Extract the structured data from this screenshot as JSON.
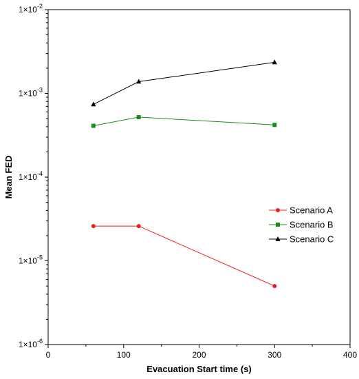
{
  "chart_data": {
    "type": "line",
    "xlabel": "Evacuation Start time (s)",
    "ylabel": "Mean FED",
    "xlim": [
      0,
      400
    ],
    "ylim": [
      1e-06,
      0.01
    ],
    "yscale": "log",
    "x_ticks": [
      0,
      100,
      200,
      300,
      400
    ],
    "x_tick_labels": [
      "0",
      "100",
      "200",
      "300",
      "400"
    ],
    "y_ticks": [
      0.01,
      0.001,
      0.0001,
      1e-05,
      1e-06
    ],
    "y_tick_labels": [
      {
        "base": "1×10",
        "exp": "-2"
      },
      {
        "base": "1×10",
        "exp": "-3"
      },
      {
        "base": "1×10",
        "exp": "-4"
      },
      {
        "base": "1×10",
        "exp": "-5"
      },
      {
        "base": "1×10",
        "exp": "-6"
      }
    ],
    "grid": false,
    "legend_position": "right-middle",
    "series": [
      {
        "name": "Scenario A",
        "color": "#ee1c1c",
        "marker": "circle",
        "x": [
          60,
          120,
          300
        ],
        "y": [
          2.6e-05,
          2.6e-05,
          5e-06
        ]
      },
      {
        "name": "Scenario B",
        "color": "#1a8c1a",
        "marker": "square",
        "x": [
          60,
          120,
          300
        ],
        "y": [
          0.00041,
          0.00052,
          0.00042
        ]
      },
      {
        "name": "Scenario C",
        "color": "#000000",
        "marker": "triangle",
        "x": [
          60,
          120,
          300
        ],
        "y": [
          0.00074,
          0.00138,
          0.00235
        ]
      }
    ]
  }
}
